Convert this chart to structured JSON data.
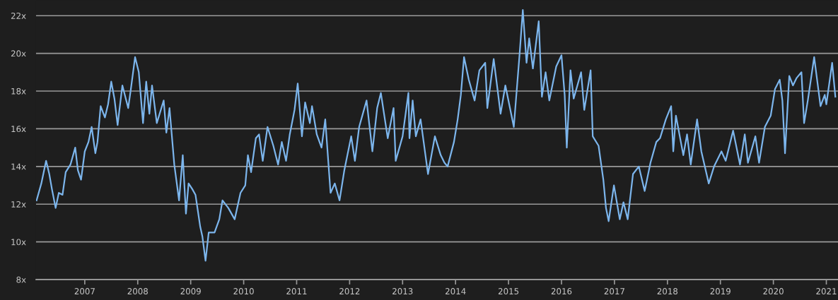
{
  "chart_data": {
    "type": "line",
    "x": [
      2006.09,
      2006.18,
      2006.27,
      2006.33,
      2006.38,
      2006.45,
      2006.51,
      2006.58,
      2006.64,
      2006.73,
      2006.82,
      2006.87,
      2006.93,
      2007.0,
      2007.07,
      2007.13,
      2007.2,
      2007.24,
      2007.3,
      2007.38,
      2007.44,
      2007.5,
      2007.56,
      2007.62,
      2007.71,
      2007.82,
      2007.87,
      2007.95,
      2008.02,
      2008.1,
      2008.16,
      2008.22,
      2008.27,
      2008.36,
      2008.49,
      2008.54,
      2008.6,
      2008.69,
      2008.78,
      2008.85,
      2008.91,
      2008.96,
      2009.03,
      2009.09,
      2009.18,
      2009.22,
      2009.28,
      2009.34,
      2009.45,
      2009.54,
      2009.6,
      2009.71,
      2009.83,
      2009.94,
      2010.03,
      2010.08,
      2010.14,
      2010.23,
      2010.29,
      2010.36,
      2010.45,
      2010.56,
      2010.65,
      2010.72,
      2010.8,
      2010.87,
      2010.96,
      2011.02,
      2011.1,
      2011.16,
      2011.25,
      2011.29,
      2011.38,
      2011.47,
      2011.54,
      2011.64,
      2011.72,
      2011.81,
      2011.9,
      2012.03,
      2012.1,
      2012.18,
      2012.32,
      2012.43,
      2012.52,
      2012.59,
      2012.72,
      2012.83,
      2012.87,
      2013.0,
      2013.11,
      2013.13,
      2013.19,
      2013.25,
      2013.34,
      2013.48,
      2013.61,
      2013.72,
      2013.79,
      2013.85,
      2013.97,
      2014.04,
      2014.1,
      2014.16,
      2014.25,
      2014.36,
      2014.45,
      2014.56,
      2014.6,
      2014.72,
      2014.85,
      2014.94,
      2015.1,
      2015.21,
      2015.27,
      2015.34,
      2015.39,
      2015.46,
      2015.57,
      2015.63,
      2015.7,
      2015.77,
      2015.9,
      2016.0,
      2016.06,
      2016.1,
      2016.17,
      2016.23,
      2016.37,
      2016.43,
      2016.55,
      2016.59,
      2016.7,
      2016.79,
      2016.84,
      2016.89,
      2016.99,
      2017.1,
      2017.17,
      2017.25,
      2017.35,
      2017.46,
      2017.57,
      2017.68,
      2017.79,
      2017.86,
      2017.97,
      2018.07,
      2018.11,
      2018.16,
      2018.3,
      2018.37,
      2018.44,
      2018.56,
      2018.64,
      2018.78,
      2018.88,
      2019.02,
      2019.1,
      2019.24,
      2019.37,
      2019.46,
      2019.52,
      2019.66,
      2019.73,
      2019.84,
      2019.95,
      2020.03,
      2020.12,
      2020.17,
      2020.22,
      2020.3,
      2020.37,
      2020.44,
      2020.53,
      2020.58,
      2020.65,
      2020.77,
      2020.89,
      2020.97,
      2021.0,
      2021.11,
      2021.17
    ],
    "series": [
      {
        "color": "#7cb5ec",
        "values": [
          12.2,
          13.1,
          14.3,
          13.6,
          12.8,
          11.8,
          12.6,
          12.5,
          13.7,
          14.1,
          15.0,
          13.8,
          13.3,
          14.8,
          15.3,
          16.1,
          14.7,
          15.3,
          17.2,
          16.6,
          17.3,
          18.5,
          17.6,
          16.2,
          18.3,
          17.1,
          18.1,
          19.8,
          19.0,
          16.3,
          18.5,
          16.8,
          18.3,
          16.3,
          17.5,
          15.8,
          17.1,
          14.1,
          12.2,
          14.6,
          11.5,
          13.1,
          12.8,
          12.5,
          10.8,
          10.3,
          9.0,
          10.5,
          10.5,
          11.2,
          12.2,
          11.8,
          11.2,
          12.6,
          13.0,
          14.6,
          13.7,
          15.5,
          15.7,
          14.3,
          16.1,
          15.1,
          14.1,
          15.3,
          14.3,
          15.7,
          17.0,
          18.4,
          15.6,
          17.4,
          16.3,
          17.2,
          15.7,
          15.0,
          16.5,
          12.6,
          13.1,
          12.2,
          13.8,
          15.6,
          14.3,
          16.1,
          17.5,
          14.8,
          17.1,
          17.9,
          15.5,
          17.1,
          14.3,
          15.6,
          17.9,
          15.5,
          17.5,
          15.6,
          16.5,
          13.6,
          15.6,
          14.6,
          14.2,
          14.0,
          15.3,
          16.5,
          17.8,
          19.8,
          18.6,
          17.5,
          19.1,
          19.5,
          17.1,
          19.7,
          16.8,
          18.3,
          16.1,
          20.0,
          22.3,
          19.5,
          20.8,
          19.2,
          21.7,
          17.7,
          19.0,
          17.5,
          19.3,
          19.9,
          17.8,
          15.0,
          19.1,
          17.6,
          19.0,
          17.0,
          19.1,
          15.6,
          15.1,
          13.3,
          11.8,
          11.1,
          13.0,
          11.2,
          12.1,
          11.2,
          13.6,
          14.0,
          12.7,
          14.2,
          15.3,
          15.5,
          16.5,
          17.2,
          14.8,
          16.7,
          14.6,
          15.7,
          14.1,
          16.5,
          14.8,
          13.1,
          14.0,
          14.8,
          14.3,
          15.9,
          14.1,
          15.7,
          14.2,
          15.6,
          14.2,
          16.1,
          16.7,
          18.1,
          18.6,
          17.5,
          14.7,
          18.8,
          18.3,
          18.7,
          19.0,
          16.3,
          17.5,
          19.8,
          17.2,
          17.8,
          17.3,
          19.5,
          17.7
        ]
      }
    ],
    "xlim": [
      2006.08,
      2021.22
    ],
    "ylim": [
      8,
      22.8
    ],
    "xticks": [
      2007,
      2008,
      2009,
      2010,
      2011,
      2012,
      2013,
      2014,
      2015,
      2016,
      2017,
      2018,
      2019,
      2020,
      2021
    ],
    "yticks": [
      {
        "value": 8,
        "label": "8x"
      },
      {
        "value": 10,
        "label": "10x"
      },
      {
        "value": 12,
        "label": "12x"
      },
      {
        "value": 14,
        "label": "14x"
      },
      {
        "value": 16,
        "label": "16x"
      },
      {
        "value": 18,
        "label": "18x"
      },
      {
        "value": 20,
        "label": "20x"
      },
      {
        "value": 22,
        "label": "22x"
      }
    ],
    "grid": "y",
    "marker": "none",
    "line_style": "solid"
  }
}
